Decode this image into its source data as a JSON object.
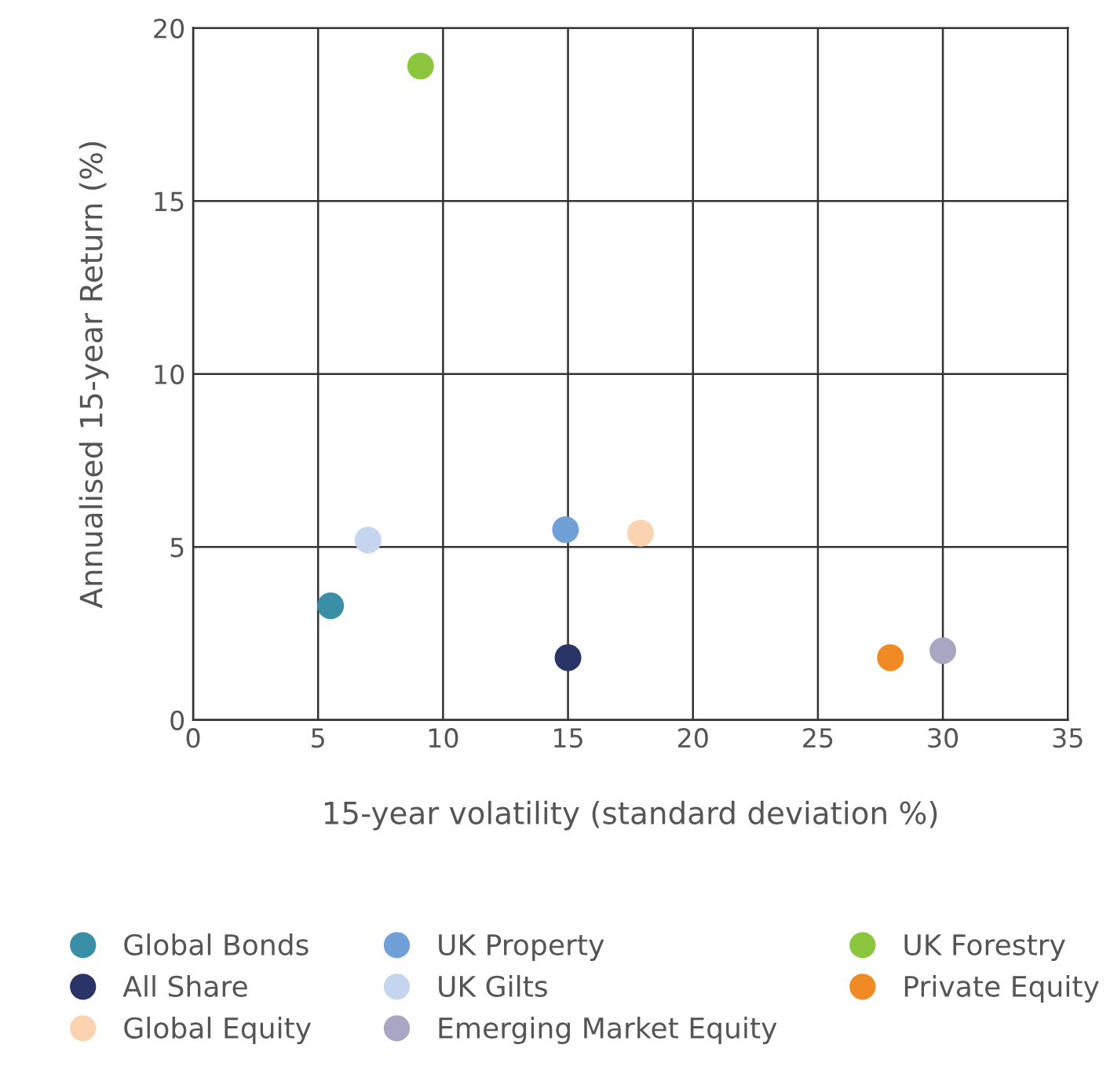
{
  "chart_data": {
    "type": "scatter",
    "xlabel": "15-year volatility (standard deviation %)",
    "ylabel": "Annualised 15-year Return (%)",
    "xlim": [
      0,
      35
    ],
    "xticks": [
      0,
      5,
      10,
      15,
      20,
      25,
      30,
      35
    ],
    "ylim": [
      0,
      20
    ],
    "yticks": [
      0,
      5,
      10,
      15,
      20
    ],
    "grid": true,
    "legend": "bottom",
    "marker": "circle",
    "series": [
      {
        "name": "Global Bonds",
        "color": "#3a8ea5",
        "x": [
          5.5
        ],
        "values": [
          3.3
        ]
      },
      {
        "name": "UK Property",
        "color": "#6fa0d8",
        "x": [
          14.9
        ],
        "values": [
          5.5
        ]
      },
      {
        "name": "UK Forestry",
        "color": "#8cc63f",
        "x": [
          9.1
        ],
        "values": [
          18.9
        ]
      },
      {
        "name": "All Share",
        "color": "#2b3467",
        "x": [
          15.0
        ],
        "values": [
          1.8
        ]
      },
      {
        "name": "UK Gilts",
        "color": "#c5d5ef",
        "x": [
          7.0
        ],
        "values": [
          5.2
        ]
      },
      {
        "name": "Private Equity",
        "color": "#f08a24",
        "x": [
          27.9
        ],
        "values": [
          1.8
        ]
      },
      {
        "name": "Global Equity",
        "color": "#fcd3b0",
        "x": [
          17.9
        ],
        "values": [
          5.4
        ]
      },
      {
        "name": "Emerging Market Equity",
        "color": "#a9a6c4",
        "x": [
          30.0
        ],
        "values": [
          2.0
        ]
      }
    ]
  }
}
